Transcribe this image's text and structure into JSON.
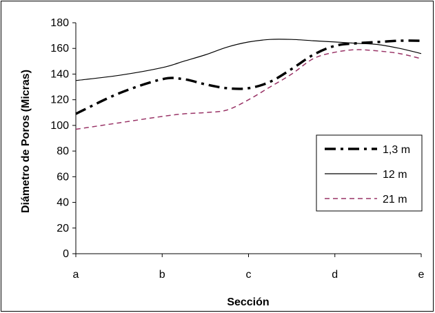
{
  "chart_data": {
    "type": "line",
    "title": "",
    "xlabel": "Sección",
    "ylabel": "Diámetro de Poros (Micras)",
    "categories": [
      "a",
      "b",
      "c",
      "d",
      "e"
    ],
    "ylim": [
      0,
      180
    ],
    "yticks": [
      0,
      20,
      40,
      60,
      80,
      100,
      120,
      140,
      160,
      180
    ],
    "grid": false,
    "legend_position": "right",
    "series": [
      {
        "name": "1,3 m",
        "style": "dash-dot",
        "color": "#000000",
        "x": [
          0,
          0.5,
          1,
          1.25,
          1.5,
          1.75,
          2,
          2.25,
          2.5,
          2.75,
          3,
          3.25,
          3.5,
          3.75,
          4
        ],
        "values": [
          109,
          125,
          136,
          136,
          132,
          129,
          129,
          134,
          144,
          155,
          162,
          164,
          165,
          166,
          166
        ]
      },
      {
        "name": "12 m",
        "style": "solid",
        "color": "#000000",
        "x": [
          0,
          0.5,
          1,
          1.25,
          1.5,
          1.75,
          2,
          2.25,
          2.5,
          2.75,
          3,
          3.25,
          3.5,
          3.75,
          4
        ],
        "values": [
          135,
          139,
          145,
          150,
          155,
          161,
          165,
          167,
          167,
          166,
          165,
          164,
          163,
          160,
          156
        ]
      },
      {
        "name": "21 m",
        "style": "dashed",
        "color": "#993366",
        "x": [
          0,
          0.5,
          1,
          1.25,
          1.5,
          1.75,
          2,
          2.25,
          2.5,
          2.75,
          3,
          3.25,
          3.5,
          3.75,
          4
        ],
        "values": [
          97,
          102,
          107,
          109,
          110,
          112,
          120,
          130,
          140,
          152,
          157,
          159,
          158,
          156,
          152
        ]
      }
    ]
  }
}
